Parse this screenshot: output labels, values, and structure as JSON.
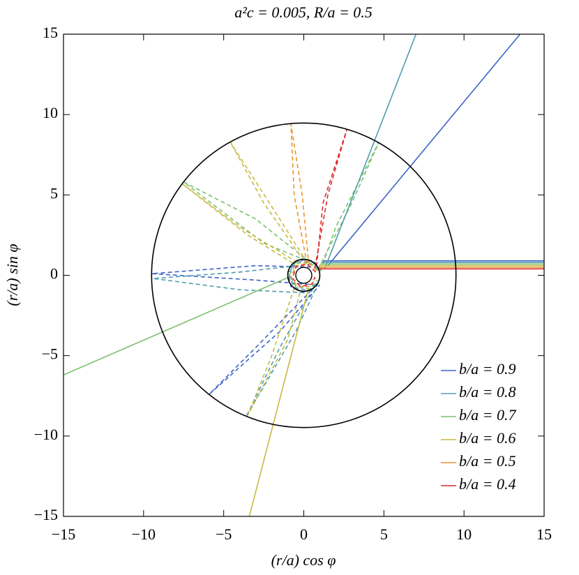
{
  "chart_data": {
    "type": "line",
    "title": "a²c = 0.005, R/a = 0.5",
    "x_label": "(r/a) cos φ",
    "y_label": "(r/a) sin φ",
    "xlim": [
      -15,
      15
    ],
    "ylim": [
      -15,
      15
    ],
    "xticks": [
      {
        "value": -15,
        "label": "−15"
      },
      {
        "value": -10,
        "label": "−10"
      },
      {
        "value": -5,
        "label": "−5"
      },
      0,
      5,
      10,
      15
    ],
    "yticks": [
      {
        "value": -15,
        "label": "−15"
      },
      {
        "value": -10,
        "label": "−10"
      },
      {
        "value": -5,
        "label": "−5"
      },
      0,
      5,
      10,
      15
    ],
    "circles": [
      9.5,
      1,
      0.5
    ],
    "legend": "lower right",
    "series": [
      {
        "name": "b/a = 0.9",
        "color": "#3d63c9",
        "solid": {
          "x": [
            15,
            1.2,
            null,
            1.5,
            13.5
          ],
          "y": [
            0.9,
            0.9,
            null,
            0.6,
            15
          ]
        },
        "dashed": {
          "x": [
            0.9,
            -3,
            -9.5,
            -3,
            0.7,
            null,
            0.5,
            -3,
            -5.9,
            -1.5,
            1,
            null,
            1.1,
            0.6,
            -0.4,
            -1,
            -0.8,
            0,
            0.9
          ],
          "y": [
            0.5,
            0.6,
            0.1,
            -0.3,
            -0.6,
            null,
            -0.9,
            -4.5,
            -7.4,
            -3.5,
            -0.6,
            null,
            0.3,
            0.9,
            0.95,
            0.2,
            -0.7,
            -1.05,
            -0.6
          ]
        }
      },
      {
        "name": "b/a = 0.8",
        "color": "#4e9db0",
        "solid": {
          "x": [
            15,
            1.1,
            null,
            1.3,
            7
          ],
          "y": [
            0.8,
            0.8,
            null,
            0.4,
            15
          ]
        },
        "dashed": {
          "x": [
            0.6,
            -1.5,
            -3.6,
            -0.5,
            0.9,
            null,
            0.5,
            -4,
            -9.4,
            -4,
            0.3,
            null,
            1,
            0.5,
            -0.5,
            -0.95,
            -0.6,
            0.3,
            0.9
          ],
          "y": [
            -0.8,
            -4.5,
            -8.8,
            -3.5,
            -0.5,
            null,
            0.7,
            0.2,
            -0.2,
            -0.9,
            -1.1,
            null,
            0.4,
            0.85,
            0.85,
            0.1,
            -0.75,
            -0.95,
            -0.4
          ]
        }
      },
      {
        "name": "b/a = 0.7",
        "color": "#7cbf6e",
        "solid": {
          "x": [
            15,
            1,
            null,
            -0.9,
            -15
          ],
          "y": [
            0.7,
            0.7,
            null,
            -0.1,
            -6.2
          ]
        },
        "dashed": {
          "x": [
            0.4,
            -3,
            -7.5,
            -2.5,
            0.2,
            null,
            0.9,
            3,
            4.7,
            2,
            1,
            null,
            0.9,
            0.4,
            -0.5,
            -0.9,
            -0.5,
            0.4,
            0.85
          ],
          "y": [
            0.8,
            3.5,
            5.8,
            2,
            0.9,
            null,
            0.4,
            4.5,
            8.3,
            3,
            0.2,
            null,
            0.3,
            0.8,
            0.75,
            0,
            -0.7,
            -0.85,
            -0.3
          ]
        }
      },
      {
        "name": "b/a = 0.6",
        "color": "#c7ba42",
        "solid": {
          "x": [
            15,
            0.95,
            null,
            0.3,
            -3.4
          ],
          "y": [
            0.6,
            0.6,
            null,
            -0.8,
            -15
          ]
        },
        "dashed": {
          "x": [
            0,
            -2.5,
            -4.6,
            -1.5,
            0.2,
            null,
            -0.4,
            -4,
            -7.6,
            -3.5,
            -0.6,
            null,
            -0.6,
            -2,
            -3.5,
            -1,
            -0.2
          ],
          "y": [
            0.9,
            4.5,
            8.3,
            3.5,
            0.8,
            null,
            0.8,
            3,
            5.7,
            2.5,
            0.7,
            null,
            -0.8,
            -5,
            -8.7,
            -4,
            -0.9
          ]
        }
      },
      {
        "name": "b/a = 0.5",
        "color": "#e8952e",
        "solid": {
          "x": [
            15,
            0.9
          ],
          "y": [
            0.5,
            0.5
          ]
        },
        "dashed": {
          "x": [
            0.2,
            -0.6,
            -0.8,
            -0.1,
            0.3,
            null,
            0.8,
            0.3,
            -0.5,
            -0.8,
            -0.4,
            0.4,
            0.75
          ],
          "y": [
            0.7,
            5,
            9.4,
            5,
            0.8,
            null,
            0.3,
            0.75,
            0.6,
            -0.1,
            -0.7,
            -0.7,
            -0.2
          ]
        }
      },
      {
        "name": "b/a = 0.4",
        "color": "#dc2a2a",
        "solid": {
          "x": [
            15,
            0.85
          ],
          "y": [
            0.4,
            0.4
          ]
        },
        "dashed": {
          "x": [
            0.7,
            1.5,
            2.7,
            1.2,
            0.8,
            null,
            0.75,
            0.2,
            -0.5,
            -0.7,
            -0.2,
            0.5,
            0.7
          ],
          "y": [
            0.5,
            5,
            9.1,
            4.5,
            0.6,
            null,
            0.2,
            0.7,
            0.5,
            -0.2,
            -0.7,
            -0.55,
            -0.1
          ]
        }
      }
    ]
  }
}
